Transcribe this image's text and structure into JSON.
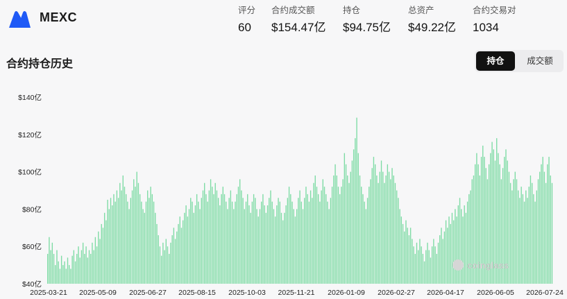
{
  "exchange": {
    "name": "MEXC",
    "logo": "mexc-logo-icon",
    "brand_color": "#1f5af6"
  },
  "stats": [
    {
      "label": "评分",
      "value": "60"
    },
    {
      "label": "合约成交额",
      "value": "$154.47亿"
    },
    {
      "label": "持仓",
      "value": "$94.75亿"
    },
    {
      "label": "总资产",
      "value": "$49.22亿"
    },
    {
      "label": "合约交易对",
      "value": "1034"
    }
  ],
  "section": {
    "title": "合约持仓历史",
    "toggle": {
      "active": "持仓",
      "inactive": "成交额"
    }
  },
  "watermark": "coinglass",
  "chart_data": {
    "type": "bar",
    "bar_color": "#7ddba4",
    "ylim": [
      40,
      140
    ],
    "y_ticks": [
      "$40亿",
      "$60亿",
      "$80亿",
      "$100亿",
      "$120亿",
      "$140亿"
    ],
    "x_ticks": [
      "2025-03-21",
      "2025-05-09",
      "2025-06-27",
      "2025-08-15",
      "2025-10-03",
      "2025-11-21",
      "2026-01-09",
      "2026-02-27",
      "2026-04-17",
      "2026-06-05",
      "2026-07-24"
    ],
    "values": [
      56,
      65,
      58,
      62,
      56,
      50,
      58,
      52,
      48,
      55,
      50,
      52,
      48,
      54,
      50,
      48,
      55,
      58,
      52,
      56,
      60,
      54,
      58,
      62,
      56,
      60,
      54,
      58,
      56,
      62,
      58,
      65,
      60,
      68,
      64,
      72,
      70,
      78,
      74,
      85,
      80,
      86,
      82,
      88,
      84,
      90,
      86,
      94,
      90,
      98,
      92,
      88,
      84,
      80,
      86,
      90,
      96,
      92,
      100,
      94,
      88,
      84,
      80,
      78,
      84,
      90,
      86,
      92,
      88,
      84,
      78,
      72,
      66,
      60,
      55,
      62,
      58,
      64,
      60,
      56,
      62,
      66,
      70,
      64,
      68,
      72,
      76,
      70,
      74,
      78,
      82,
      76,
      80,
      86,
      84,
      78,
      82,
      88,
      84,
      80,
      86,
      90,
      94,
      88,
      84,
      90,
      96,
      92,
      88,
      94,
      90,
      86,
      82,
      88,
      92,
      88,
      84,
      80,
      86,
      90,
      84,
      80,
      84,
      88,
      92,
      96,
      90,
      86,
      80,
      84,
      88,
      82,
      78,
      84,
      88,
      86,
      80,
      76,
      80,
      84,
      88,
      82,
      78,
      82,
      86,
      90,
      84,
      80,
      76,
      82,
      86,
      84,
      78,
      74,
      78,
      82,
      86,
      92,
      88,
      84,
      80,
      76,
      80,
      86,
      90,
      84,
      80,
      86,
      92,
      88,
      84,
      90,
      86,
      94,
      98,
      92,
      88,
      84,
      90,
      96,
      92,
      88,
      84,
      80,
      86,
      92,
      98,
      104,
      98,
      92,
      88,
      92,
      96,
      110,
      104,
      98,
      94,
      100,
      106,
      112,
      118,
      129,
      110,
      98,
      92,
      88,
      84,
      80,
      86,
      92,
      96,
      102,
      108,
      104,
      98,
      94,
      100,
      106,
      100,
      94,
      98,
      104,
      100,
      96,
      102,
      98,
      94,
      90,
      86,
      80,
      76,
      72,
      68,
      74,
      70,
      66,
      70,
      64,
      60,
      56,
      62,
      58,
      64,
      60,
      56,
      52,
      58,
      62,
      58,
      54,
      60,
      64,
      60,
      56,
      62,
      66,
      70,
      64,
      68,
      74,
      70,
      76,
      72,
      78,
      74,
      80,
      76,
      82,
      86,
      80,
      76,
      82,
      78,
      84,
      88,
      90,
      96,
      98,
      104,
      110,
      104,
      98,
      108,
      114,
      108,
      102,
      96,
      104,
      110,
      116,
      112,
      106,
      118,
      110,
      104,
      96,
      102,
      108,
      112,
      106,
      100,
      94,
      90,
      96,
      100,
      96,
      90,
      86,
      92,
      88,
      84,
      90,
      86,
      92,
      98,
      94,
      88,
      84,
      90,
      96,
      100,
      104,
      108,
      100,
      94,
      104,
      108,
      98,
      94
    ]
  }
}
